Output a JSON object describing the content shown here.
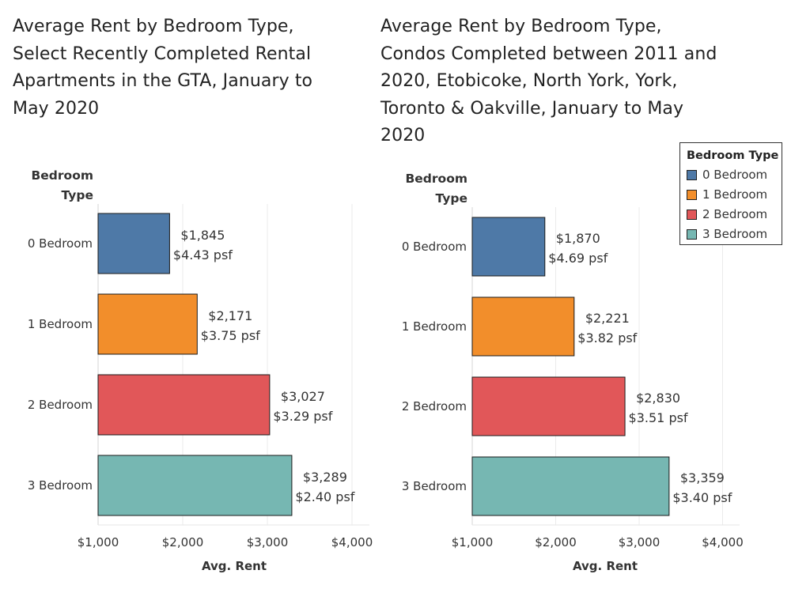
{
  "chart_data": [
    {
      "type": "bar",
      "orientation": "horizontal",
      "title": "Average Rent by Bedroom Type,\nSelect Recently Completed Rental\nApartments in the GTA, January to\nMay 2020",
      "row_header": "Bedroom\nType",
      "xlabel": "Avg. Rent",
      "categories": [
        "0 Bedroom",
        "1 Bedroom",
        "2 Bedroom",
        "3 Bedroom"
      ],
      "values": [
        1845,
        2171,
        3027,
        3289
      ],
      "value_labels": [
        "$1,845",
        "$2,171",
        "$3,027",
        "$3,289"
      ],
      "psf_labels": [
        "$4.43 psf",
        "$3.75 psf",
        "$3.29 psf",
        "$2.40 psf"
      ],
      "xticks": [
        1000,
        2000,
        3000,
        4000
      ],
      "xtick_labels": [
        "$1,000",
        "$2,000",
        "$3,000",
        "$4,000"
      ],
      "xlim": [
        1000,
        4300
      ],
      "grid": "vertical"
    },
    {
      "type": "bar",
      "orientation": "horizontal",
      "title": "Average Rent by Bedroom Type,\nCondos Completed between 2011 and\n2020, Etobicoke, North York, York,\nToronto & Oakville, January to May\n2020",
      "row_header": "Bedroom\nType",
      "xlabel": "Avg. Rent",
      "categories": [
        "0 Bedroom",
        "1 Bedroom",
        "2 Bedroom",
        "3 Bedroom"
      ],
      "values": [
        1870,
        2221,
        2830,
        3359
      ],
      "value_labels": [
        "$1,870",
        "$2,221",
        "$2,830",
        "$3,359"
      ],
      "psf_labels": [
        "$4.69 psf",
        "$3.82 psf",
        "$3.51 psf",
        "$3.40 psf"
      ],
      "xticks": [
        1000,
        2000,
        3000,
        4000
      ],
      "xtick_labels": [
        "$1,000",
        "$2,000",
        "$3,000",
        "$4,000"
      ],
      "xlim": [
        1000,
        4300
      ],
      "grid": "vertical"
    }
  ],
  "legend": {
    "title": "Bedroom Type",
    "placement": "top-right",
    "items": [
      {
        "label": "0 Bedroom",
        "color": "#4e79a7"
      },
      {
        "label": "1 Bedroom",
        "color": "#f28e2b"
      },
      {
        "label": "2 Bedroom",
        "color": "#e15759"
      },
      {
        "label": "3 Bedroom",
        "color": "#76b7b2"
      }
    ]
  }
}
